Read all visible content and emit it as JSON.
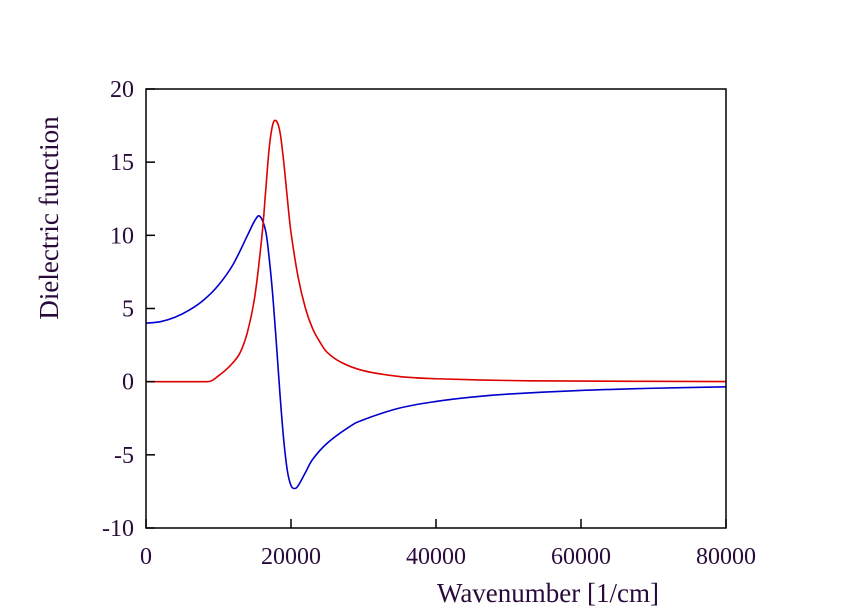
{
  "chart_data": {
    "type": "line",
    "title": "",
    "xlabel": "Wavenumber [1/cm]",
    "ylabel": "Dielectric function",
    "xlim": [
      0,
      80000
    ],
    "ylim": [
      -10,
      20
    ],
    "x_ticks": [
      0,
      20000,
      40000,
      60000,
      80000
    ],
    "y_ticks": [
      -10,
      -5,
      0,
      5,
      10,
      15,
      20
    ],
    "x_tick_labels": [
      "0",
      "20000",
      "40000",
      "60000",
      "80000"
    ],
    "y_tick_labels": [
      "-10",
      "-5",
      "0",
      "5",
      "10",
      "15",
      "20"
    ],
    "grid": false,
    "legend": "none",
    "series": [
      {
        "color": "#0000cc",
        "x": [
          0,
          2000,
          4000,
          6000,
          8000,
          10000,
          12000,
          14000,
          15000,
          15700,
          16500,
          17000,
          17500,
          18000,
          18500,
          19000,
          19500,
          20000,
          20500,
          21000,
          22000,
          23000,
          25000,
          28000,
          30000,
          35000,
          40000,
          45000,
          50000,
          60000,
          70000,
          80000
        ],
        "y": [
          4.0,
          4.1,
          4.4,
          4.9,
          5.6,
          6.6,
          8.0,
          10.0,
          11.0,
          11.3,
          10.3,
          8.4,
          5.8,
          2.5,
          -1.0,
          -4.0,
          -6.1,
          -7.1,
          -7.3,
          -7.1,
          -6.2,
          -5.3,
          -4.2,
          -3.1,
          -2.6,
          -1.8,
          -1.35,
          -1.05,
          -0.85,
          -0.6,
          -0.45,
          -0.35
        ]
      },
      {
        "color": "#dd0000",
        "x": [
          0,
          2000,
          4000,
          6000,
          8000,
          9000,
          10000,
          11000,
          12000,
          13000,
          14000,
          15000,
          16000,
          16500,
          17000,
          17500,
          18000,
          18500,
          19000,
          19500,
          20000,
          21000,
          22000,
          23000,
          24000,
          25000,
          27000,
          30000,
          35000,
          40000,
          50000,
          60000,
          80000
        ],
        "y": [
          0,
          0,
          0,
          0,
          0,
          0.05,
          0.4,
          0.8,
          1.3,
          2.0,
          3.4,
          5.8,
          10.0,
          13.0,
          16.0,
          17.6,
          17.8,
          17.0,
          15.0,
          12.5,
          10.2,
          7.1,
          5.0,
          3.6,
          2.7,
          2.0,
          1.3,
          0.75,
          0.35,
          0.2,
          0.08,
          0.04,
          0.01
        ]
      }
    ]
  }
}
